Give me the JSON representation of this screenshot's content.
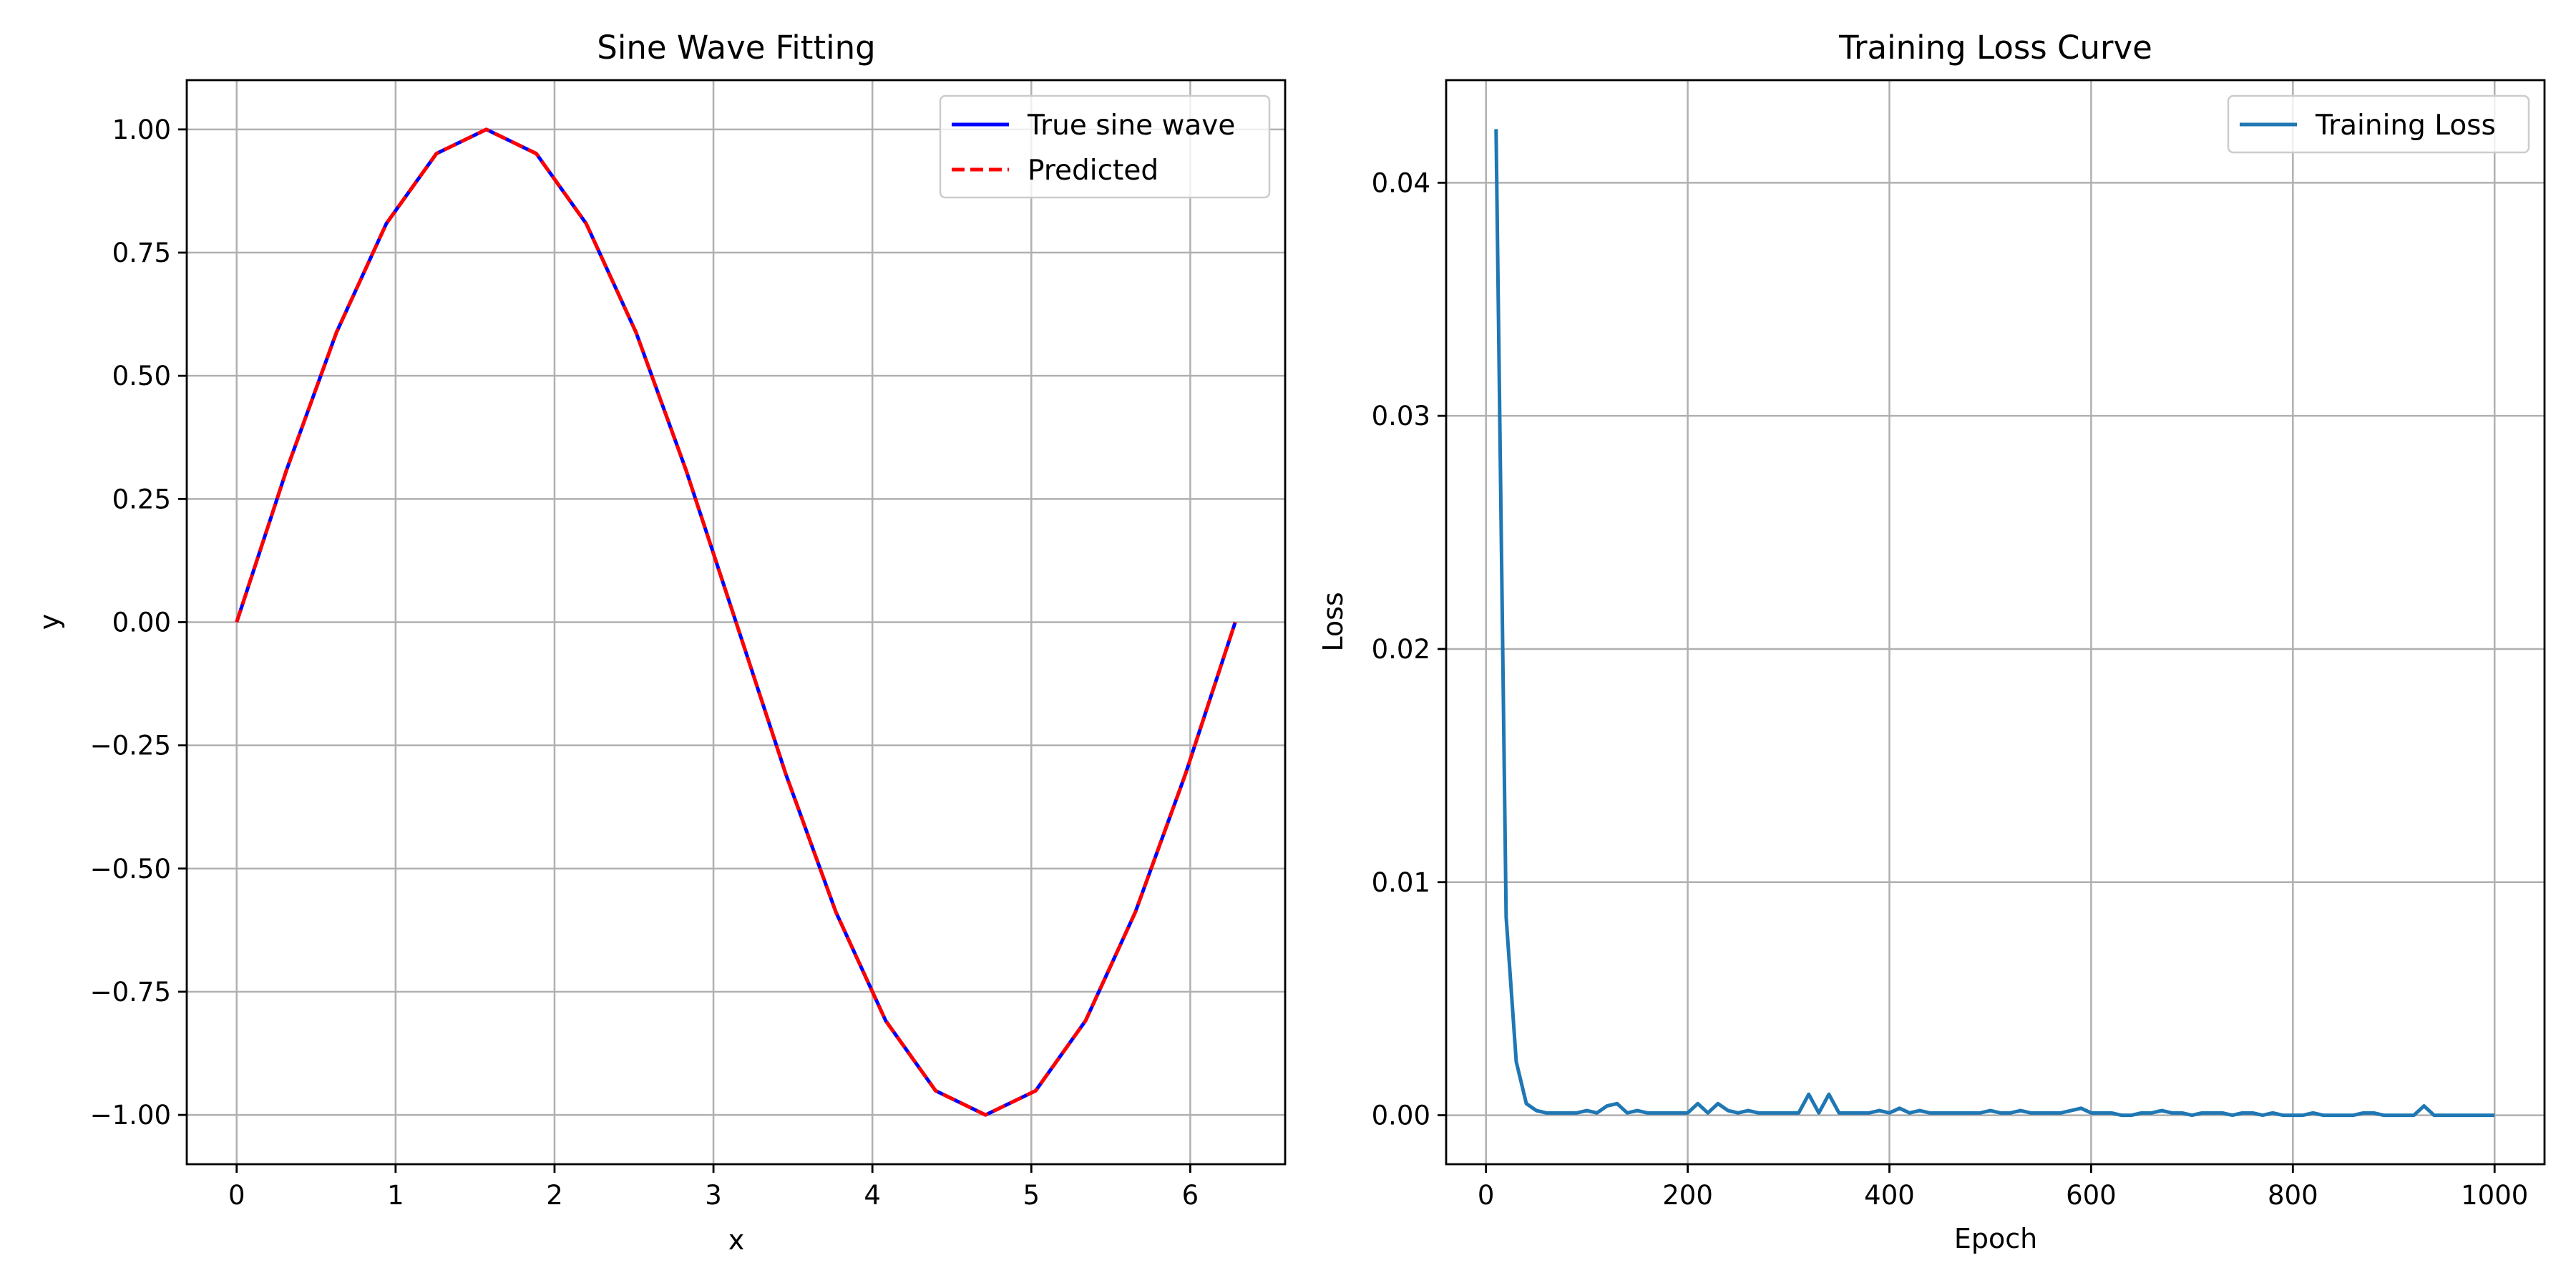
{
  "chart_data": [
    {
      "type": "line",
      "title": "Sine Wave Fitting",
      "xlabel": "x",
      "ylabel": "y",
      "xlim": [
        -0.314,
        6.597
      ],
      "ylim": [
        -1.1,
        1.1
      ],
      "xticks": [
        0,
        1,
        2,
        3,
        4,
        5,
        6
      ],
      "xtick_labels": [
        "0",
        "1",
        "2",
        "3",
        "4",
        "5",
        "6"
      ],
      "yticks": [
        -1.0,
        -0.75,
        -0.5,
        -0.25,
        0.0,
        0.25,
        0.5,
        0.75,
        1.0
      ],
      "ytick_labels": [
        "−1.00",
        "−0.75",
        "−0.50",
        "−0.25",
        "0.00",
        "0.25",
        "0.50",
        "0.75",
        "1.00"
      ],
      "grid": true,
      "legend_position": "top-right",
      "series": [
        {
          "name": "True sine wave",
          "color": "#0000ff",
          "style": "solid",
          "x": [
            0,
            0.314,
            0.628,
            0.942,
            1.257,
            1.571,
            1.885,
            2.199,
            2.513,
            2.827,
            3.142,
            3.456,
            3.77,
            4.084,
            4.398,
            4.712,
            5.027,
            5.341,
            5.655,
            5.969,
            6.283
          ],
          "y": [
            0,
            0.309,
            0.588,
            0.809,
            0.951,
            1.0,
            0.951,
            0.809,
            0.588,
            0.309,
            0,
            -0.309,
            -0.588,
            -0.809,
            -0.951,
            -1.0,
            -0.951,
            -0.809,
            -0.588,
            -0.309,
            0
          ]
        },
        {
          "name": "Predicted",
          "color": "#ff0000",
          "style": "dashed",
          "x": [
            0,
            0.314,
            0.628,
            0.942,
            1.257,
            1.571,
            1.885,
            2.199,
            2.513,
            2.827,
            3.142,
            3.456,
            3.77,
            4.084,
            4.398,
            4.712,
            5.027,
            5.341,
            5.655,
            5.969,
            6.283
          ],
          "y": [
            0,
            0.309,
            0.588,
            0.809,
            0.951,
            1.0,
            0.951,
            0.809,
            0.588,
            0.309,
            0,
            -0.309,
            -0.588,
            -0.809,
            -0.951,
            -1.0,
            -0.951,
            -0.809,
            -0.588,
            -0.309,
            0
          ]
        }
      ]
    },
    {
      "type": "line",
      "title": "Training Loss Curve",
      "xlabel": "Epoch",
      "ylabel": "Loss",
      "xlim": [
        -39.5,
        1049.5
      ],
      "ylim": [
        -0.0021,
        0.0444
      ],
      "xticks": [
        0,
        200,
        400,
        600,
        800,
        1000
      ],
      "xtick_labels": [
        "0",
        "200",
        "400",
        "600",
        "800",
        "1000"
      ],
      "yticks": [
        0.0,
        0.01,
        0.02,
        0.03,
        0.04
      ],
      "ytick_labels": [
        "0.00",
        "0.01",
        "0.02",
        "0.03",
        "0.04"
      ],
      "grid": true,
      "legend_position": "top-right",
      "series": [
        {
          "name": "Training Loss",
          "color": "#1f77b4",
          "style": "solid",
          "x": [
            10,
            20,
            30,
            40,
            50,
            60,
            70,
            80,
            90,
            100,
            110,
            120,
            130,
            140,
            150,
            160,
            170,
            180,
            190,
            200,
            210,
            220,
            230,
            240,
            250,
            260,
            270,
            280,
            290,
            300,
            310,
            320,
            330,
            340,
            350,
            360,
            370,
            380,
            390,
            400,
            410,
            420,
            430,
            440,
            450,
            460,
            470,
            480,
            490,
            500,
            510,
            520,
            530,
            540,
            550,
            560,
            570,
            580,
            590,
            600,
            610,
            620,
            630,
            640,
            650,
            660,
            670,
            680,
            690,
            700,
            710,
            720,
            730,
            740,
            750,
            760,
            770,
            780,
            790,
            800,
            810,
            820,
            830,
            840,
            850,
            860,
            870,
            880,
            890,
            900,
            910,
            920,
            930,
            940,
            950,
            960,
            970,
            980,
            990,
            1000
          ],
          "y": [
            0.0423,
            0.0085,
            0.0023,
            0.0005,
            0.0002,
            0.0001,
            0.0001,
            0.0001,
            0.0001,
            0.0002,
            0.0001,
            0.0004,
            0.0005,
            0.0001,
            0.0002,
            0.0001,
            0.0001,
            0.0001,
            0.0001,
            0.0001,
            0.0005,
            0.0001,
            0.0005,
            0.0002,
            0.0001,
            0.0002,
            0.0001,
            0.0001,
            0.0001,
            0.0001,
            0.0001,
            0.0009,
            0.0001,
            0.0009,
            0.0001,
            0.0001,
            0.0001,
            0.0001,
            0.0002,
            0.0001,
            0.0003,
            0.0001,
            0.0002,
            0.0001,
            0.0001,
            0.0001,
            0.0001,
            0.0001,
            0.0001,
            0.0002,
            0.0001,
            0.0001,
            0.0002,
            0.0001,
            0.0001,
            0.0001,
            0.0001,
            0.0002,
            0.0003,
            0.0001,
            0.0001,
            0.0001,
            0.0,
            0.0,
            0.0001,
            0.0001,
            0.0002,
            0.0001,
            0.0001,
            0.0,
            0.0001,
            0.0001,
            0.0001,
            0.0,
            0.0001,
            0.0001,
            0.0,
            0.0001,
            0.0,
            0.0,
            0.0,
            0.0001,
            0.0,
            0.0,
            0.0,
            0.0,
            0.0001,
            0.0001,
            0.0,
            0.0,
            0.0,
            0.0,
            0.0004,
            0.0,
            0.0,
            0.0,
            0.0,
            0.0,
            0.0,
            0.0
          ]
        }
      ]
    }
  ]
}
